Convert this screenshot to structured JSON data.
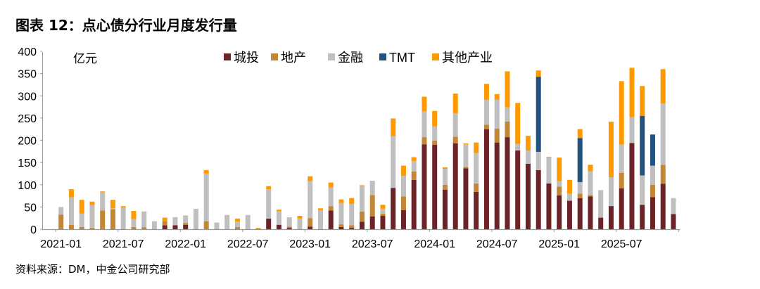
{
  "title": "图表 12：点心债分行业月度发行量",
  "source": "资料来源：DM，中金公司研究部",
  "chart_data": {
    "type": "bar",
    "stacked": true,
    "title": "",
    "unit_label": "亿元",
    "xlabel": "",
    "ylabel": "",
    "ylim": [
      0,
      400
    ],
    "yticks": [
      0,
      50,
      100,
      150,
      200,
      250,
      300,
      350,
      400
    ],
    "grid": false,
    "legend_position": "top",
    "x_tick_labels": [
      "2021-01",
      "2021-07",
      "2022-01",
      "2022-07",
      "2023-01",
      "2023-07",
      "2024-01",
      "2024-07",
      "2025-01",
      "2025-07"
    ],
    "categories": [
      "2021-01",
      "2021-02",
      "2021-03",
      "2021-04",
      "2021-05",
      "2021-06",
      "2021-07",
      "2021-08",
      "2021-09",
      "2021-10",
      "2021-11",
      "2021-12",
      "2022-01",
      "2022-02",
      "2022-03",
      "2022-04",
      "2022-05",
      "2022-06",
      "2022-07",
      "2022-08",
      "2022-09",
      "2022-10",
      "2022-11",
      "2022-12",
      "2023-01",
      "2023-02",
      "2023-03",
      "2023-04",
      "2023-05",
      "2023-06",
      "2023-07",
      "2023-08",
      "2023-09",
      "2023-10",
      "2023-11",
      "2023-12",
      "2024-01",
      "2024-02",
      "2024-03",
      "2024-04",
      "2024-05",
      "2024-06",
      "2024-07",
      "2024-08",
      "2024-09",
      "2024-10",
      "2024-11",
      "2024-12",
      "2025-01",
      "2025-02",
      "2025-03",
      "2025-04",
      "2025-05",
      "2025-06",
      "2025-07",
      "2025-08",
      "2025-09",
      "2025-10",
      "2025-11",
      "2025-12"
    ],
    "series": [
      {
        "name": "城投",
        "color": "#6b2327",
        "values": [
          0,
          0,
          0,
          0,
          0,
          0,
          0,
          0,
          0,
          0,
          9,
          9,
          10,
          0,
          0,
          0,
          0,
          0,
          0,
          0,
          24,
          10,
          3,
          0,
          6,
          0,
          42,
          5,
          3,
          17,
          29,
          30,
          93,
          43,
          111,
          191,
          190,
          89,
          193,
          137,
          84,
          225,
          195,
          207,
          177,
          147,
          133,
          103,
          76,
          64,
          70,
          74,
          26,
          52,
          92,
          194,
          55,
          72,
          102,
          34
        ]
      },
      {
        "name": "地产",
        "color": "#c38634",
        "values": [
          33,
          10,
          5,
          3,
          42,
          45,
          0,
          5,
          4,
          0,
          9,
          0,
          4,
          0,
          18,
          0,
          0,
          5,
          0,
          1,
          0,
          0,
          3,
          0,
          19,
          0,
          10,
          6,
          6,
          23,
          48,
          5,
          0,
          31,
          19,
          16,
          9,
          11,
          15,
          3,
          19,
          10,
          31,
          35,
          0,
          0,
          0,
          0,
          20,
          0,
          10,
          3,
          0,
          0,
          35,
          0,
          0,
          28,
          43,
          0
        ]
      },
      {
        "name": "金融",
        "color": "#bfbfbf",
        "values": [
          17,
          62,
          30,
          51,
          41,
          2,
          49,
          18,
          36,
          18,
          0,
          18,
          17,
          46,
          107,
          15,
          32,
          12,
          32,
          0,
          66,
          30,
          21,
          24,
          83,
          43,
          42,
          48,
          48,
          57,
          32,
          11,
          116,
          46,
          23,
          58,
          32,
          36,
          53,
          51,
          68,
          56,
          65,
          32,
          15,
          30,
          41,
          59,
          12,
          16,
          26,
          53,
          62,
          65,
          63,
          58,
          66,
          43,
          138,
          36
        ]
      },
      {
        "name": "TMT",
        "color": "#24527e",
        "values": [
          0,
          0,
          0,
          0,
          0,
          0,
          0,
          0,
          0,
          0,
          0,
          0,
          0,
          0,
          0,
          0,
          0,
          0,
          0,
          0,
          0,
          0,
          0,
          0,
          0,
          0,
          0,
          0,
          0,
          0,
          0,
          0,
          0,
          0,
          0,
          0,
          0,
          0,
          0,
          0,
          0,
          0,
          0,
          0,
          0,
          0,
          169,
          0,
          0,
          0,
          99,
          0,
          0,
          0,
          0,
          0,
          134,
          70,
          0,
          0
        ]
      },
      {
        "name": "其他产业",
        "color": "#ff9900",
        "values": [
          0,
          18,
          31,
          8,
          2,
          19,
          3,
          18,
          0,
          0,
          8,
          0,
          0,
          0,
          8,
          0,
          0,
          7,
          0,
          2,
          7,
          4,
          0,
          6,
          11,
          4,
          11,
          8,
          13,
          2,
          0,
          9,
          40,
          23,
          9,
          33,
          35,
          3,
          44,
          2,
          24,
          36,
          13,
          81,
          92,
          33,
          14,
          1,
          53,
          31,
          20,
          15,
          0,
          125,
          143,
          111,
          67,
          0,
          77,
          0
        ]
      }
    ]
  }
}
